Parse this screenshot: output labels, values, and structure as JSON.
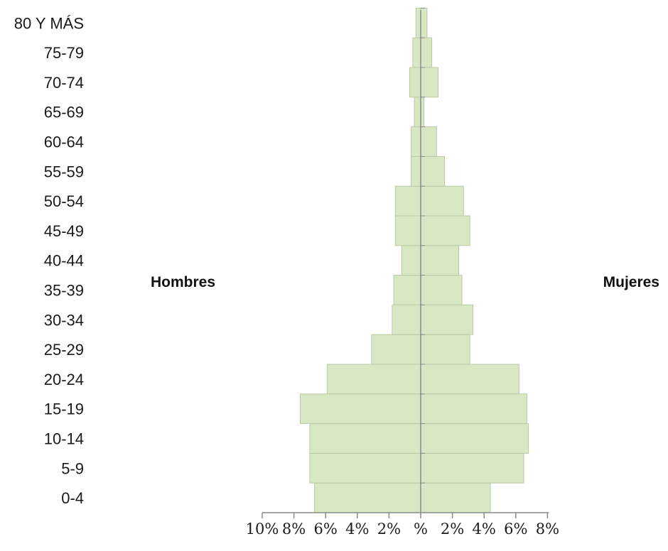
{
  "chart_data": {
    "type": "bar",
    "orientation": "horizontal",
    "subtype": "population-pyramid",
    "categories": [
      "0-4",
      "5-9",
      "10-14",
      "15-19",
      "20-24",
      "25-29",
      "30-34",
      "35-39",
      "40-44",
      "45-49",
      "50-54",
      "55-59",
      "60-64",
      "65-69",
      "70-74",
      "75-79",
      "80 Y MÁS"
    ],
    "series": [
      {
        "name": "Hombres",
        "side": "left",
        "values": [
          6.7,
          7.0,
          7.0,
          7.6,
          5.9,
          3.1,
          1.8,
          1.7,
          1.2,
          1.6,
          1.6,
          0.6,
          0.6,
          0.4,
          0.7,
          0.5,
          0.3
        ]
      },
      {
        "name": "Mujeres",
        "side": "right",
        "values": [
          4.4,
          6.5,
          6.8,
          6.7,
          6.2,
          3.1,
          3.3,
          2.6,
          2.4,
          3.1,
          2.7,
          1.5,
          1.0,
          0.2,
          1.1,
          0.7,
          0.4
        ]
      }
    ],
    "x_ticks": [
      {
        "value": -10,
        "label": "10%"
      },
      {
        "value": -8,
        "label": "8%"
      },
      {
        "value": -6,
        "label": "6%"
      },
      {
        "value": -4,
        "label": "4%"
      },
      {
        "value": -2,
        "label": "2%"
      },
      {
        "value": 0,
        "label": "%"
      },
      {
        "value": 2,
        "label": "2%"
      },
      {
        "value": 4,
        "label": "4%"
      },
      {
        "value": 6,
        "label": "6%"
      },
      {
        "value": 8,
        "label": "8%"
      }
    ],
    "xlim": [
      -10,
      8
    ],
    "bar_color": "#d9e8c4",
    "bar_stroke": "#b9c9a6",
    "axis_color": "#8a8a8a",
    "title": "",
    "xlabel": "",
    "ylabel": "",
    "grid": false,
    "legend": "none"
  }
}
